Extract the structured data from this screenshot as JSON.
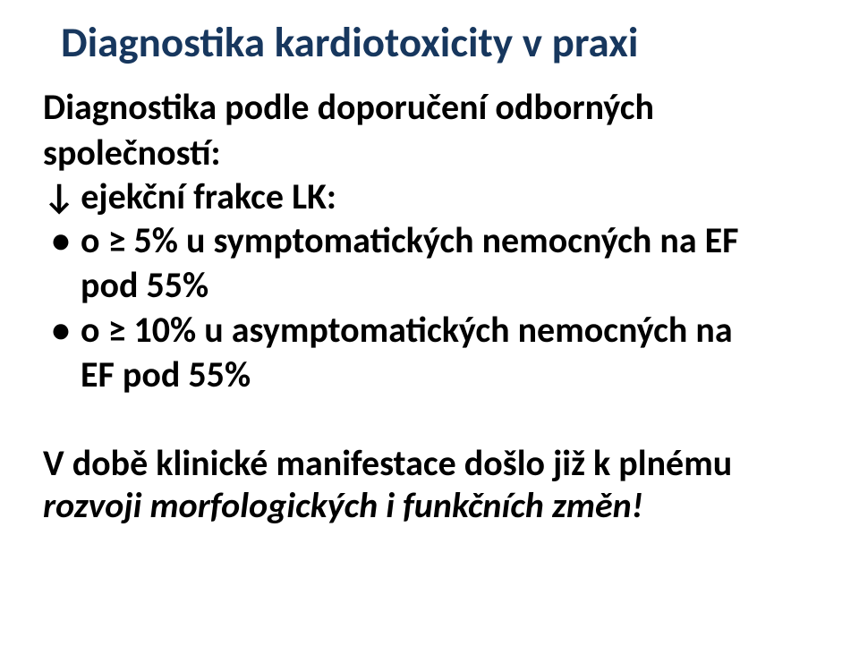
{
  "colors": {
    "title": "#17375e",
    "body": "#000000",
    "background": "#ffffff"
  },
  "typography": {
    "font_family": "Calibri",
    "title_size_pt": 34,
    "body_size_pt": 30,
    "title_weight": "bold",
    "body_weight": "bold"
  },
  "title": "Diagnostika kardiotoxicity v praxi",
  "sub_line1": "Diagnostika podle doporučení odborných",
  "sub_line2": "společností:",
  "arrow_symbol": "↓",
  "arrow_text": "ejekční frakce LK:",
  "bullets": [
    {
      "line1": "o ≥ 5% u symptomatických nemocných na EF",
      "line2": "pod 55%"
    },
    {
      "line1": "o ≥ 10% u asymptomatických nemocných na",
      "line2": "EF pod 55%"
    }
  ],
  "footer_plain": "V době klinické manifestace došlo již k plnému",
  "footer_italic": "rozvoji morfologických i funkčních změn!"
}
